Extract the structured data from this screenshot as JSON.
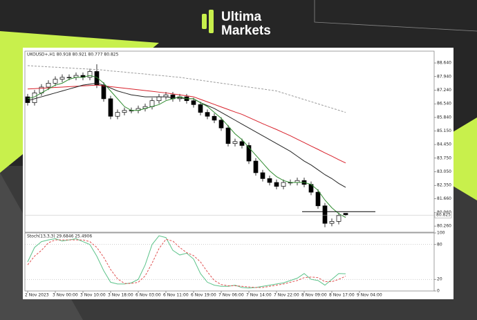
{
  "logo": {
    "line1": "Ultima",
    "line2": "Markets"
  },
  "chart_data": [
    {
      "type": "candlestick",
      "title": "UKOUSD+,H1 80.918 80.921 80.777 80.825",
      "categories": [
        "2 Nov 2023",
        null,
        null,
        null,
        "3 Nov 00:00",
        null,
        null,
        null,
        "3 Nov 10:00",
        null,
        null,
        null,
        "3 Nov 18:00",
        null,
        null,
        null,
        "6 Nov 03:00",
        null,
        null,
        null,
        "6 Nov 11:00",
        null,
        null,
        null,
        "6 Nov 19:00",
        null,
        null,
        null,
        "7 Nov 06:00",
        null,
        null,
        null,
        "7 Nov 14:00",
        null,
        null,
        null,
        "7 Nov 22:00",
        null,
        null,
        null,
        "8 Nov 09:00",
        null,
        null,
        null,
        "8 Nov 17:00",
        null,
        null,
        null,
        "9 Nov 04:00"
      ],
      "open": [
        86.9,
        86.6,
        87.1,
        87.4,
        87.6,
        87.8,
        87.9,
        87.9,
        88.0,
        87.9,
        88.2,
        87.5,
        86.8,
        85.9,
        86.1,
        86.2,
        86.2,
        86.3,
        86.4,
        86.7,
        86.9,
        87.0,
        86.8,
        86.9,
        86.7,
        86.5,
        86.1,
        85.9,
        85.7,
        85.3,
        84.5,
        84.6,
        84.4,
        83.6,
        83.0,
        82.7,
        82.5,
        82.3,
        82.5,
        82.5,
        82.6,
        82.4,
        82.0,
        81.3,
        80.4,
        80.5,
        80.918,
        null,
        null
      ],
      "high": [
        87.05,
        87.25,
        87.55,
        87.75,
        87.95,
        88.05,
        88.05,
        88.15,
        88.15,
        88.35,
        88.57,
        87.65,
        86.95,
        86.25,
        86.35,
        86.35,
        86.45,
        86.55,
        86.85,
        87.05,
        87.15,
        87.15,
        87.05,
        87.05,
        86.85,
        86.65,
        86.25,
        86.05,
        85.85,
        85.45,
        84.75,
        84.75,
        84.55,
        83.75,
        83.15,
        82.85,
        82.65,
        82.65,
        82.65,
        82.75,
        82.75,
        82.55,
        82.15,
        81.45,
        80.65,
        80.95,
        80.921,
        null,
        null
      ],
      "low": [
        86.45,
        86.45,
        86.95,
        87.25,
        87.45,
        87.65,
        87.75,
        87.75,
        87.75,
        87.75,
        87.35,
        86.65,
        85.75,
        85.75,
        85.95,
        86.05,
        86.05,
        86.15,
        86.25,
        86.55,
        86.75,
        86.65,
        86.65,
        86.55,
        86.35,
        85.95,
        85.75,
        85.55,
        85.15,
        84.35,
        84.35,
        84.25,
        83.45,
        82.85,
        82.55,
        82.35,
        82.15,
        82.15,
        82.35,
        82.35,
        82.25,
        81.85,
        81.15,
        80.2,
        80.25,
        80.35,
        80.777,
        null,
        null
      ],
      "close": [
        86.6,
        87.1,
        87.4,
        87.6,
        87.8,
        87.9,
        87.9,
        88.0,
        87.9,
        88.2,
        87.5,
        86.8,
        85.9,
        86.1,
        86.2,
        86.2,
        86.3,
        86.4,
        86.7,
        86.9,
        87.0,
        86.8,
        86.9,
        86.7,
        86.5,
        86.1,
        85.9,
        85.7,
        85.3,
        84.5,
        84.6,
        84.4,
        83.6,
        83.0,
        82.7,
        82.5,
        82.3,
        82.5,
        82.5,
        82.6,
        82.4,
        82.0,
        81.3,
        80.4,
        80.5,
        80.8,
        80.825,
        null,
        null
      ],
      "series": [
        {
          "color": "#9a9a9a",
          "dash": true,
          "values": [
            88.5,
            88.48,
            88.46,
            88.44,
            88.42,
            88.4,
            88.38,
            88.36,
            88.34,
            88.32,
            88.3,
            88.27,
            88.23,
            88.2,
            88.17,
            88.13,
            88.1,
            88.07,
            88.03,
            88.0,
            87.97,
            87.93,
            87.9,
            87.85,
            87.8,
            87.75,
            87.7,
            87.65,
            87.6,
            87.55,
            87.5,
            87.45,
            87.4,
            87.35,
            87.3,
            87.25,
            87.2,
            87.09,
            86.98,
            86.87,
            86.76,
            86.65,
            86.54,
            86.43,
            86.32,
            86.21,
            86.1,
            null,
            null
          ]
        },
        {
          "color": "#d8202a",
          "dash": false,
          "values": [
            87.3,
            87.32,
            87.34,
            87.36,
            87.38,
            87.4,
            87.42,
            87.44,
            87.46,
            87.48,
            87.5,
            87.46,
            87.42,
            87.38,
            87.34,
            87.3,
            87.26,
            87.22,
            87.18,
            87.14,
            87.1,
            87.05,
            87.0,
            86.95,
            86.9,
            86.77,
            86.64,
            86.51,
            86.38,
            86.25,
            86.12,
            86.0,
            85.84,
            85.68,
            85.52,
            85.37,
            85.22,
            85.06,
            84.9,
            84.72,
            84.55,
            84.37,
            84.2,
            84.02,
            83.85,
            83.67,
            83.5,
            null,
            null
          ]
        },
        {
          "color": "#222222",
          "dash": false,
          "values": [
            86.7,
            86.8,
            86.9,
            87.0,
            87.1,
            87.2,
            87.3,
            87.4,
            87.5,
            87.55,
            87.6,
            87.5,
            87.35,
            87.2,
            87.1,
            87.0,
            86.95,
            86.9,
            86.9,
            86.9,
            86.9,
            86.85,
            86.85,
            86.8,
            86.8,
            86.6,
            86.45,
            86.3,
            86.1,
            85.9,
            85.7,
            85.5,
            85.3,
            85.1,
            84.9,
            84.7,
            84.5,
            84.3,
            84.1,
            83.85,
            83.6,
            83.4,
            83.15,
            82.9,
            82.7,
            82.45,
            82.25,
            null,
            null
          ]
        },
        {
          "color": "#2e8b2e",
          "dash": false,
          "values": [
            86.8,
            86.9,
            87.1,
            87.3,
            87.5,
            87.6,
            87.8,
            87.9,
            87.9,
            88.0,
            87.9,
            87.6,
            87.2,
            86.8,
            86.4,
            86.2,
            86.2,
            86.3,
            86.4,
            86.5,
            86.7,
            86.8,
            86.9,
            86.8,
            86.8,
            86.6,
            86.4,
            86.1,
            85.8,
            85.4,
            85.0,
            84.7,
            84.3,
            83.9,
            83.5,
            83.1,
            82.8,
            82.6,
            82.5,
            82.5,
            82.5,
            82.4,
            82.1,
            81.6,
            81.2,
            80.9,
            80.7,
            null,
            null
          ]
        }
      ],
      "last_price": {
        "value": 80.825,
        "label": "80.825"
      },
      "hline": 81.0,
      "ylim": [
        79.98,
        89.21
      ],
      "yticks": [
        {
          "value": 88.64,
          "label": "88.640"
        },
        {
          "value": 87.94,
          "label": "87.940"
        },
        {
          "value": 87.24,
          "label": "87.240"
        },
        {
          "value": 86.54,
          "label": "86.540"
        },
        {
          "value": 85.84,
          "label": "85.840"
        },
        {
          "value": 85.15,
          "label": "85.150"
        },
        {
          "value": 84.45,
          "label": "84.450"
        },
        {
          "value": 83.75,
          "label": "83.750"
        },
        {
          "value": 83.05,
          "label": "83.050"
        },
        {
          "value": 82.35,
          "label": "82.350"
        },
        {
          "value": 81.66,
          "label": "81.660"
        },
        {
          "value": 80.96,
          "label": "80.960"
        },
        {
          "value": 80.26,
          "label": "80.260"
        }
      ]
    },
    {
      "type": "line",
      "title": "Stoch(13,3,3) 29.6846 25.4906",
      "series": [
        {
          "color": "#5cc38a",
          "dash": false,
          "values": [
            50,
            75,
            85,
            88,
            90,
            86,
            88,
            90,
            85,
            80,
            60,
            35,
            15,
            12,
            12,
            14,
            20,
            45,
            80,
            95,
            92,
            70,
            62,
            65,
            55,
            30,
            15,
            10,
            8,
            8,
            10,
            6,
            5,
            6,
            8,
            10,
            12,
            14,
            18,
            22,
            30,
            20,
            18,
            10,
            20,
            30,
            29.6846,
            null,
            null
          ]
        },
        {
          "color": "#e05050",
          "dash": true,
          "values": [
            45,
            60,
            70,
            83,
            88,
            88,
            88,
            88,
            88,
            85,
            75,
            58,
            37,
            21,
            13,
            13,
            15,
            26,
            48,
            73,
            89,
            86,
            75,
            66,
            61,
            50,
            33,
            18,
            11,
            9,
            9,
            8,
            7,
            6,
            6,
            8,
            10,
            12,
            15,
            18,
            23,
            24,
            23,
            16,
            16,
            20,
            25.4906,
            null,
            null
          ]
        }
      ],
      "levels": [
        80,
        20
      ],
      "ylim": [
        0,
        100
      ],
      "yticks": [
        100,
        80,
        20,
        0
      ]
    }
  ]
}
